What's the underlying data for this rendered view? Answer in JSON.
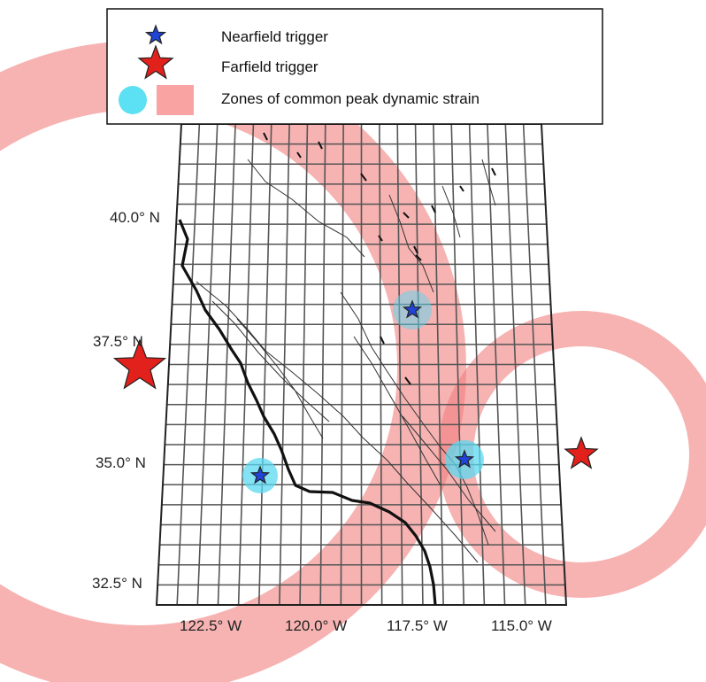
{
  "legend": {
    "nearfield": {
      "label": "Nearfield trigger",
      "color": "#1f44d6"
    },
    "farfield": {
      "label": "Farfield trigger",
      "color": "#e3211c"
    },
    "zones": {
      "label": "Zones of common peak dynamic strain",
      "colors": [
        "#5ce0f4",
        "#f9a3a3"
      ]
    }
  },
  "axes": {
    "lat_labels": [
      "40.0° N",
      "37.5° N",
      "35.0° N",
      "32.5° N"
    ],
    "lon_labels": [
      "122.5° W",
      "120.0° W",
      "117.5° W",
      "115.0° W"
    ]
  },
  "colors": {
    "grid": "#555555",
    "coast": "#111111",
    "faults": "#333333",
    "strain_zone": "#f27f7f",
    "near_zone": "#5ad8ef"
  },
  "triggers": {
    "nearfield": [
      "nearfield-1",
      "nearfield-2",
      "nearfield-3"
    ],
    "farfield": [
      "farfield-west",
      "farfield-east"
    ]
  }
}
